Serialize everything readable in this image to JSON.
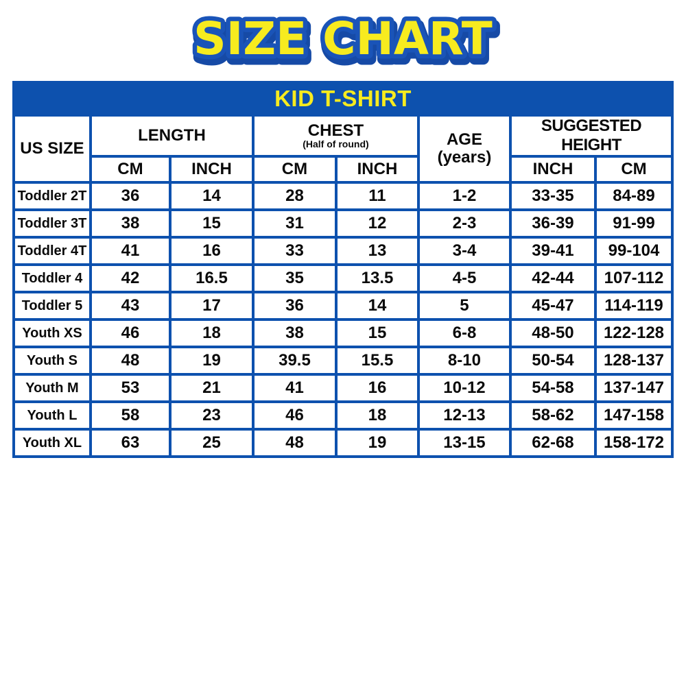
{
  "title": "SIZE CHART",
  "colors": {
    "accent_blue": "#0d51ae",
    "accent_yellow": "#f7eb1f",
    "text": "#0a0a0a",
    "background": "#ffffff"
  },
  "table": {
    "header_bar": "KID T-SHIRT",
    "group_headers": {
      "us_size": "US SIZE",
      "length": "LENGTH",
      "chest": "CHEST",
      "chest_note": "(Half of round)",
      "age_line1": "AGE",
      "age_line2": "(years)",
      "suggested_height": "SUGGESTED HEIGHT"
    },
    "subheaders": [
      "CM",
      "INCH",
      "CM",
      "INCH",
      "INCH",
      "CM"
    ]
  },
  "chart_data": {
    "type": "table",
    "title": "SIZE CHART",
    "subtitle": "KID T-SHIRT",
    "columns": [
      "US SIZE",
      "LENGTH CM",
      "LENGTH INCH",
      "CHEST (Half of round) CM",
      "CHEST (Half of round) INCH",
      "AGE (years)",
      "SUGGESTED HEIGHT INCH",
      "SUGGESTED HEIGHT CM"
    ],
    "rows": [
      [
        "Toddler 2T",
        "36",
        "14",
        "28",
        "11",
        "1-2",
        "33-35",
        "84-89"
      ],
      [
        "Toddler 3T",
        "38",
        "15",
        "31",
        "12",
        "2-3",
        "36-39",
        "91-99"
      ],
      [
        "Toddler 4T",
        "41",
        "16",
        "33",
        "13",
        "3-4",
        "39-41",
        "99-104"
      ],
      [
        "Toddler 4",
        "42",
        "16.5",
        "35",
        "13.5",
        "4-5",
        "42-44",
        "107-112"
      ],
      [
        "Toddler 5",
        "43",
        "17",
        "36",
        "14",
        "5",
        "45-47",
        "114-119"
      ],
      [
        "Youth XS",
        "46",
        "18",
        "38",
        "15",
        "6-8",
        "48-50",
        "122-128"
      ],
      [
        "Youth S",
        "48",
        "19",
        "39.5",
        "15.5",
        "8-10",
        "50-54",
        "128-137"
      ],
      [
        "Youth M",
        "53",
        "21",
        "41",
        "16",
        "10-12",
        "54-58",
        "137-147"
      ],
      [
        "Youth L",
        "58",
        "23",
        "46",
        "18",
        "12-13",
        "58-62",
        "147-158"
      ],
      [
        "Youth XL",
        "63",
        "25",
        "48",
        "19",
        "13-15",
        "62-68",
        "158-172"
      ]
    ]
  }
}
